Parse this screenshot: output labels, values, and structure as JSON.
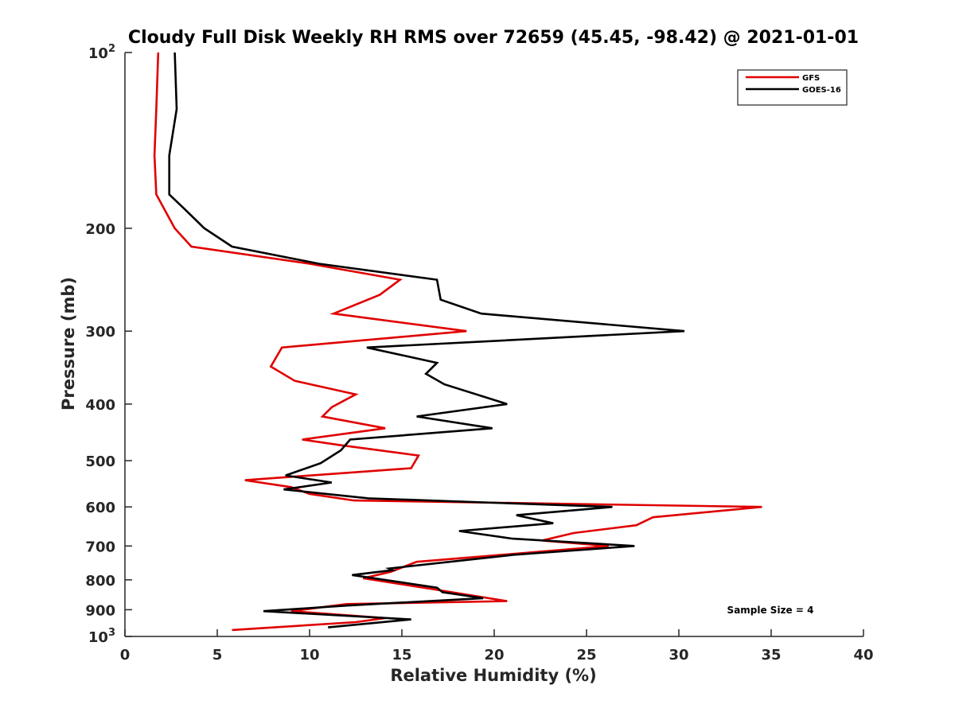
{
  "chart_data": {
    "type": "line",
    "title": "Cloudy Full Disk Weekly RH RMS over 72659 (45.45, -98.42) @ 2021-01-01",
    "xlabel": "Relative Humidity (%)",
    "ylabel": "Pressure (mb)",
    "xlim": [
      0,
      40
    ],
    "ylim": [
      100,
      1000
    ],
    "yscale": "log",
    "y_reversed": true,
    "x_ticks": [
      "0",
      "5",
      "10",
      "15",
      "20",
      "25",
      "30",
      "35",
      "40"
    ],
    "y_ticks": [
      {
        "value": 100,
        "base": "10",
        "exp": "2"
      },
      {
        "value": 200,
        "label": "200"
      },
      {
        "value": 300,
        "label": "300"
      },
      {
        "value": 400,
        "label": "400"
      },
      {
        "value": 500,
        "label": "500"
      },
      {
        "value": 600,
        "label": "600"
      },
      {
        "value": 700,
        "label": "700"
      },
      {
        "value": 800,
        "label": "800"
      },
      {
        "value": 900,
        "label": "900"
      },
      {
        "value": 1000,
        "base": "10",
        "exp": "3"
      }
    ],
    "grid": false,
    "legend_position": "top-right",
    "series": [
      {
        "name": "GFS",
        "color": "#e00000",
        "points": [
          [
            1.8,
            100
          ],
          [
            1.7,
            125
          ],
          [
            1.6,
            150
          ],
          [
            1.7,
            175
          ],
          [
            2.7,
            200
          ],
          [
            3.6,
            215
          ],
          [
            10,
            230
          ],
          [
            14.9,
            245
          ],
          [
            13.8,
            260
          ],
          [
            11.3,
            280
          ],
          [
            18.5,
            300
          ],
          [
            8.5,
            320
          ],
          [
            7.9,
            345
          ],
          [
            9.2,
            365
          ],
          [
            12.5,
            385
          ],
          [
            11.2,
            405
          ],
          [
            10.7,
            420
          ],
          [
            14.1,
            440
          ],
          [
            9.6,
            460
          ],
          [
            11.6,
            470
          ],
          [
            15.9,
            490
          ],
          [
            15.5,
            515
          ],
          [
            6.5,
            540
          ],
          [
            9.0,
            555
          ],
          [
            10,
            570
          ],
          [
            12.4,
            585
          ],
          [
            34.5,
            600
          ],
          [
            28.6,
            625
          ],
          [
            27.7,
            645
          ],
          [
            24.3,
            665
          ],
          [
            22.6,
            685
          ],
          [
            26.2,
            700
          ],
          [
            15.8,
            745
          ],
          [
            14.4,
            775
          ],
          [
            12.9,
            795
          ],
          [
            16.7,
            830
          ],
          [
            20.7,
            870
          ],
          [
            12,
            880
          ],
          [
            9.0,
            905
          ],
          [
            14.1,
            930
          ],
          [
            12.5,
            945
          ],
          [
            5.8,
            975
          ]
        ]
      },
      {
        "name": "GOES-16",
        "color": "#000000",
        "points": [
          [
            2.7,
            100
          ],
          [
            2.8,
            125
          ],
          [
            2.4,
            150
          ],
          [
            2.4,
            175
          ],
          [
            3.2,
            185
          ],
          [
            4.3,
            200
          ],
          [
            5.8,
            215
          ],
          [
            10.5,
            230
          ],
          [
            16.9,
            245
          ],
          [
            17.1,
            265
          ],
          [
            19.3,
            280
          ],
          [
            30.3,
            300
          ],
          [
            13.1,
            320
          ],
          [
            16.9,
            340
          ],
          [
            16.3,
            355
          ],
          [
            17.3,
            370
          ],
          [
            20.7,
            400
          ],
          [
            15.8,
            420
          ],
          [
            19.9,
            440
          ],
          [
            12.2,
            460
          ],
          [
            11.7,
            480
          ],
          [
            10.6,
            505
          ],
          [
            8.7,
            530
          ],
          [
            11.2,
            545
          ],
          [
            8.6,
            560
          ],
          [
            13.2,
            580
          ],
          [
            26.4,
            600
          ],
          [
            21.2,
            620
          ],
          [
            23.2,
            640
          ],
          [
            18.1,
            660
          ],
          [
            21,
            680
          ],
          [
            27.6,
            700
          ],
          [
            21,
            725
          ],
          [
            14.3,
            765
          ],
          [
            14.5,
            770
          ],
          [
            12.3,
            785
          ],
          [
            16.9,
            825
          ],
          [
            17.2,
            840
          ],
          [
            19.4,
            860
          ],
          [
            12.1,
            885
          ],
          [
            7.5,
            905
          ],
          [
            15.5,
            935
          ],
          [
            11,
            965
          ]
        ]
      }
    ],
    "annotation": "Sample Size = 4"
  }
}
